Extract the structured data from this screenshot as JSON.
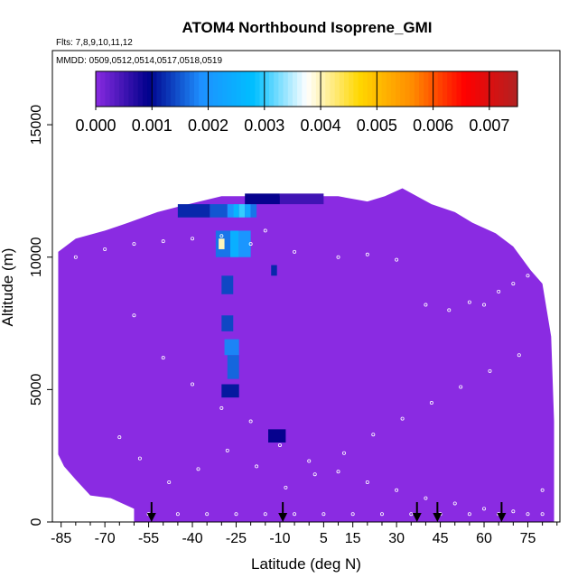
{
  "chart_data": {
    "type": "heatmap",
    "title": "ATOM4 Northbound Isoprene_GMI",
    "subtitle_flights": "Flts: 7,8,9,10,11,12",
    "subtitle_dates": "MMDD: 0509,0512,0514,0517,0518,0519",
    "xlabel": "Latitude (deg N)",
    "ylabel": "Altitude (m)",
    "xlim": [
      -88,
      86
    ],
    "ylim": [
      0,
      17800
    ],
    "x_ticks": [
      -85,
      -70,
      -55,
      -40,
      -25,
      -10,
      5,
      15,
      30,
      45,
      60,
      75
    ],
    "y_ticks": [
      0,
      5000,
      10000,
      15000
    ],
    "colorbar": {
      "min": 0.0,
      "max": 0.0075,
      "ticks": [
        "0.000",
        "0.001",
        "0.002",
        "0.003",
        "0.004",
        "0.005",
        "0.006",
        "0.007"
      ],
      "colors": [
        "#8a2be2",
        "#00008b",
        "#1e90ff",
        "#00bfff",
        "#ffffff",
        "#ffd700",
        "#ff8c00",
        "#ff0000",
        "#b22222"
      ]
    },
    "background_value": 0.0,
    "background_color": "#8a2be2",
    "envelope": [
      [
        -86,
        0,
        10200
      ],
      [
        -80,
        0,
        10700
      ],
      [
        -70,
        0,
        11000
      ],
      [
        -62,
        0,
        11300
      ],
      [
        -52,
        0,
        11700
      ],
      [
        -45,
        0,
        11900
      ],
      [
        -30,
        0,
        12300
      ],
      [
        -20,
        0,
        12300
      ],
      [
        -10,
        0,
        12300
      ],
      [
        0,
        0,
        12300
      ],
      [
        10,
        0,
        12300
      ],
      [
        20,
        0,
        12100
      ],
      [
        26,
        0,
        12300
      ],
      [
        32,
        0,
        12600
      ],
      [
        42,
        0,
        12000
      ],
      [
        50,
        0,
        11700
      ],
      [
        56,
        0,
        11300
      ],
      [
        64,
        0,
        10900
      ],
      [
        70,
        0,
        10400
      ],
      [
        76,
        0,
        9500
      ],
      [
        80,
        0,
        9000
      ],
      [
        83,
        0,
        7000
      ],
      [
        84,
        0,
        3800
      ]
    ],
    "bottom_cutout": [
      [
        -88,
        0,
        3000
      ],
      [
        -84,
        0,
        2100
      ],
      [
        -80,
        0,
        1600
      ],
      [
        -75,
        0,
        1000
      ],
      [
        -68,
        0,
        900
      ],
      [
        -60,
        0,
        500
      ]
    ],
    "cells": [
      {
        "lat": [
          -45,
          -34
        ],
        "alt": [
          11500,
          12000
        ],
        "value": 0.0012
      },
      {
        "lat": [
          -34,
          -28
        ],
        "alt": [
          11500,
          12000
        ],
        "value": 0.0015
      },
      {
        "lat": [
          -28,
          -26
        ],
        "alt": [
          11500,
          12000
        ],
        "value": 0.002
      },
      {
        "lat": [
          -26,
          -24
        ],
        "alt": [
          11500,
          12000
        ],
        "value": 0.0026
      },
      {
        "lat": [
          -24,
          -22
        ],
        "alt": [
          11500,
          12000
        ],
        "value": 0.003
      },
      {
        "lat": [
          -22,
          -20
        ],
        "alt": [
          11500,
          12000
        ],
        "value": 0.0023
      },
      {
        "lat": [
          -20,
          -18
        ],
        "alt": [
          11500,
          12000
        ],
        "value": 0.0017
      },
      {
        "lat": [
          -22,
          -10
        ],
        "alt": [
          12000,
          12400
        ],
        "value": 0.0009
      },
      {
        "lat": [
          -10,
          5
        ],
        "alt": [
          12000,
          12400
        ],
        "value": 0.0005
      },
      {
        "lat": [
          -32,
          -27
        ],
        "alt": [
          10000,
          11000
        ],
        "value": 0.0017
      },
      {
        "lat": [
          -27,
          -24
        ],
        "alt": [
          10000,
          11000
        ],
        "value": 0.0025
      },
      {
        "lat": [
          -24,
          -20
        ],
        "alt": [
          10000,
          11000
        ],
        "value": 0.002
      },
      {
        "lat": [
          -31,
          -29
        ],
        "alt": [
          10300,
          10700
        ],
        "value": 0.004
      },
      {
        "lat": [
          -30,
          -26
        ],
        "alt": [
          8600,
          9300
        ],
        "value": 0.0014
      },
      {
        "lat": [
          -13,
          -11
        ],
        "alt": [
          9300,
          9700
        ],
        "value": 0.0012
      },
      {
        "lat": [
          -30,
          -26
        ],
        "alt": [
          7200,
          7800
        ],
        "value": 0.0014
      },
      {
        "lat": [
          -29,
          -24
        ],
        "alt": [
          6300,
          6900
        ],
        "value": 0.0018
      },
      {
        "lat": [
          -28,
          -24
        ],
        "alt": [
          5400,
          6300
        ],
        "value": 0.0016
      },
      {
        "lat": [
          -30,
          -24
        ],
        "alt": [
          4700,
          5200
        ],
        "value": 0.0011
      },
      {
        "lat": [
          -14,
          -8
        ],
        "alt": [
          3000,
          3500
        ],
        "value": 0.0009
      }
    ],
    "flight_track_points": [
      [
        -88,
        9800
      ],
      [
        -80,
        10000
      ],
      [
        -70,
        10300
      ],
      [
        -60,
        10500
      ],
      [
        -50,
        10600
      ],
      [
        -40,
        10700
      ],
      [
        -30,
        10800
      ],
      [
        -20,
        10500
      ],
      [
        -15,
        11000
      ],
      [
        -5,
        10200
      ],
      [
        10,
        10000
      ],
      [
        20,
        10100
      ],
      [
        30,
        9900
      ],
      [
        40,
        8200
      ],
      [
        48,
        8000
      ],
      [
        55,
        8300
      ],
      [
        60,
        8200
      ],
      [
        65,
        8700
      ],
      [
        70,
        9000
      ],
      [
        75,
        9300
      ],
      [
        -60,
        7800
      ],
      [
        -50,
        6200
      ],
      [
        -40,
        5200
      ],
      [
        -30,
        4300
      ],
      [
        -20,
        3800
      ],
      [
        -10,
        2900
      ],
      [
        0,
        2300
      ],
      [
        10,
        1900
      ],
      [
        20,
        1500
      ],
      [
        30,
        1200
      ],
      [
        40,
        900
      ],
      [
        50,
        700
      ],
      [
        60,
        500
      ],
      [
        70,
        400
      ],
      [
        80,
        300
      ],
      [
        -55,
        300
      ],
      [
        -45,
        300
      ],
      [
        -35,
        300
      ],
      [
        -25,
        300
      ],
      [
        -15,
        300
      ],
      [
        -5,
        300
      ],
      [
        5,
        300
      ],
      [
        15,
        300
      ],
      [
        25,
        300
      ],
      [
        35,
        300
      ],
      [
        45,
        300
      ],
      [
        55,
        300
      ],
      [
        65,
        300
      ],
      [
        75,
        300
      ],
      [
        80,
        1200
      ],
      [
        -65,
        3200
      ],
      [
        -58,
        2400
      ],
      [
        -48,
        1500
      ],
      [
        -38,
        2000
      ],
      [
        -28,
        2700
      ],
      [
        -18,
        2100
      ],
      [
        -8,
        1300
      ],
      [
        2,
        1800
      ],
      [
        12,
        2600
      ],
      [
        22,
        3300
      ],
      [
        32,
        3900
      ],
      [
        42,
        4500
      ],
      [
        52,
        5100
      ],
      [
        62,
        5700
      ],
      [
        72,
        6300
      ]
    ],
    "arrows_lat": [
      -54,
      -9,
      37,
      44,
      66
    ]
  }
}
